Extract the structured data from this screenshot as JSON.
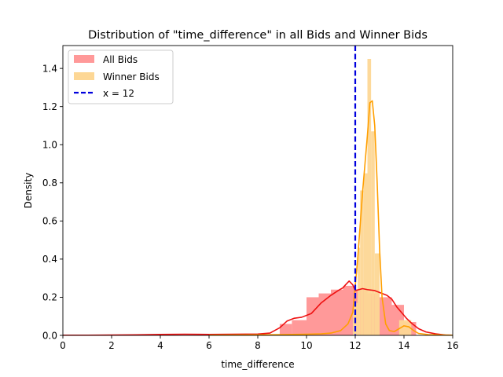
{
  "chart_data": {
    "type": "histogram",
    "title": "Distribution of \"time_difference\" in all Bids and Winner Bids",
    "xlabel": "time_difference",
    "ylabel": "Density",
    "xlim": [
      0,
      16
    ],
    "ylim": [
      0,
      1.52
    ],
    "xticks": [
      "0",
      "2",
      "4",
      "6",
      "8",
      "10",
      "12",
      "14",
      "16"
    ],
    "yticks": [
      "0.0",
      "0.2",
      "0.4",
      "0.6",
      "0.8",
      "1.0",
      "1.2",
      "1.4"
    ],
    "legend_position": "upper-left",
    "legend": [
      {
        "label": "All Bids",
        "kind": "patch",
        "color": "#ff9999"
      },
      {
        "label": "Winner Bids",
        "kind": "patch",
        "color": "#fdd795"
      },
      {
        "label": "x = 12",
        "kind": "dashed-line",
        "color": "#0000dd"
      }
    ],
    "series": [
      {
        "name": "All Bids",
        "hist_color": "#ff9999",
        "kde_color": "#ee1111",
        "bins": [
          {
            "x0": 8.9,
            "x1": 9.4,
            "density": 0.06
          },
          {
            "x0": 9.4,
            "x1": 10.0,
            "density": 0.08
          },
          {
            "x0": 10.0,
            "x1": 10.5,
            "density": 0.2
          },
          {
            "x0": 10.5,
            "x1": 11.0,
            "density": 0.22
          },
          {
            "x0": 11.0,
            "x1": 11.5,
            "density": 0.24
          },
          {
            "x0": 11.5,
            "x1": 12.0,
            "density": 0.26
          },
          {
            "x0": 12.0,
            "x1": 12.5,
            "density": 0.24
          },
          {
            "x0": 12.5,
            "x1": 13.0,
            "density": 0.22
          },
          {
            "x0": 13.0,
            "x1": 13.5,
            "density": 0.2
          },
          {
            "x0": 13.5,
            "x1": 14.0,
            "density": 0.16
          },
          {
            "x0": 14.0,
            "x1": 14.5,
            "density": 0.07
          }
        ],
        "kde": [
          [
            0.0,
            0.001
          ],
          [
            1.0,
            0.001
          ],
          [
            2.0,
            0.002
          ],
          [
            3.0,
            0.003
          ],
          [
            4.0,
            0.005
          ],
          [
            5.0,
            0.006
          ],
          [
            6.0,
            0.005
          ],
          [
            7.0,
            0.006
          ],
          [
            8.0,
            0.007
          ],
          [
            8.5,
            0.012
          ],
          [
            8.9,
            0.04
          ],
          [
            9.2,
            0.075
          ],
          [
            9.5,
            0.09
          ],
          [
            9.8,
            0.095
          ],
          [
            10.2,
            0.115
          ],
          [
            10.6,
            0.17
          ],
          [
            11.0,
            0.21
          ],
          [
            11.3,
            0.235
          ],
          [
            11.5,
            0.25
          ],
          [
            11.6,
            0.265
          ],
          [
            11.75,
            0.285
          ],
          [
            11.9,
            0.265
          ],
          [
            12.0,
            0.235
          ],
          [
            12.15,
            0.24
          ],
          [
            12.3,
            0.245
          ],
          [
            12.5,
            0.24
          ],
          [
            12.8,
            0.235
          ],
          [
            13.1,
            0.22
          ],
          [
            13.3,
            0.21
          ],
          [
            13.5,
            0.19
          ],
          [
            13.7,
            0.15
          ],
          [
            13.9,
            0.12
          ],
          [
            14.1,
            0.09
          ],
          [
            14.3,
            0.065
          ],
          [
            14.6,
            0.035
          ],
          [
            14.9,
            0.018
          ],
          [
            15.3,
            0.008
          ],
          [
            15.7,
            0.002
          ],
          [
            16.0,
            0.001
          ]
        ]
      },
      {
        "name": "Winner Bids",
        "hist_color": "#fdd795",
        "kde_color": "#ff9f00",
        "bins": [
          {
            "x0": 11.9,
            "x1": 12.1,
            "density": 0.17
          },
          {
            "x0": 12.1,
            "x1": 12.2,
            "density": 0.46
          },
          {
            "x0": 12.2,
            "x1": 12.35,
            "density": 0.76
          },
          {
            "x0": 12.35,
            "x1": 12.5,
            "density": 0.85
          },
          {
            "x0": 12.5,
            "x1": 12.65,
            "density": 1.45
          },
          {
            "x0": 12.65,
            "x1": 12.8,
            "density": 1.07
          },
          {
            "x0": 12.8,
            "x1": 13.0,
            "density": 0.43
          },
          {
            "x0": 13.8,
            "x1": 14.3,
            "density": 0.08
          }
        ],
        "kde": [
          [
            6.0,
            0.001
          ],
          [
            7.0,
            0.002
          ],
          [
            8.0,
            0.003
          ],
          [
            9.0,
            0.004
          ],
          [
            10.0,
            0.006
          ],
          [
            10.6,
            0.008
          ],
          [
            11.0,
            0.012
          ],
          [
            11.4,
            0.025
          ],
          [
            11.7,
            0.06
          ],
          [
            11.9,
            0.12
          ],
          [
            12.1,
            0.4
          ],
          [
            12.3,
            0.75
          ],
          [
            12.5,
            1.05
          ],
          [
            12.6,
            1.22
          ],
          [
            12.7,
            1.23
          ],
          [
            12.8,
            1.1
          ],
          [
            12.9,
            0.8
          ],
          [
            13.0,
            0.45
          ],
          [
            13.1,
            0.2
          ],
          [
            13.25,
            0.06
          ],
          [
            13.4,
            0.025
          ],
          [
            13.6,
            0.02
          ],
          [
            13.8,
            0.035
          ],
          [
            14.0,
            0.05
          ],
          [
            14.2,
            0.045
          ],
          [
            14.4,
            0.025
          ],
          [
            14.6,
            0.01
          ],
          [
            15.0,
            0.004
          ],
          [
            16.0,
            0.001
          ]
        ]
      }
    ],
    "vline": {
      "x": 12,
      "label": "x = 12",
      "color": "#0000dd",
      "style": "dashed"
    }
  }
}
